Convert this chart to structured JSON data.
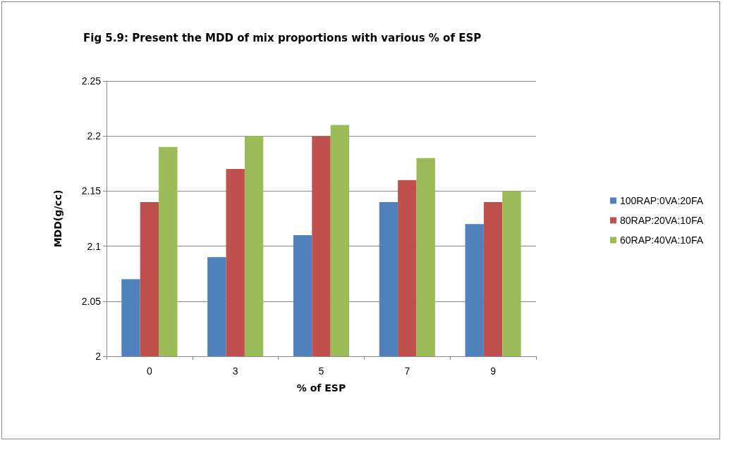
{
  "chart_data": {
    "type": "bar",
    "title": "Fig 5.9: Present the MDD of mix proportions with various % of ESP",
    "xlabel": "% of ESP",
    "ylabel": "MDD(g/cc)",
    "categories": [
      "0",
      "3",
      "5",
      "7",
      "9"
    ],
    "series": [
      {
        "name": "100RAP:0VA:20FA",
        "color": "#4f81bd",
        "values": [
          2.07,
          2.09,
          2.11,
          2.14,
          2.12
        ]
      },
      {
        "name": "80RAP:20VA:10FA",
        "color": "#c0504d",
        "values": [
          2.14,
          2.17,
          2.2,
          2.16,
          2.14
        ]
      },
      {
        "name": "60RAP:40VA:10FA",
        "color": "#9bbb59",
        "values": [
          2.19,
          2.2,
          2.21,
          2.18,
          2.15
        ]
      }
    ],
    "ylim": [
      2,
      2.25
    ],
    "yticks": [
      2,
      2.05,
      2.1,
      2.15,
      2.2,
      2.25
    ],
    "grid": "y",
    "legend": "right"
  }
}
